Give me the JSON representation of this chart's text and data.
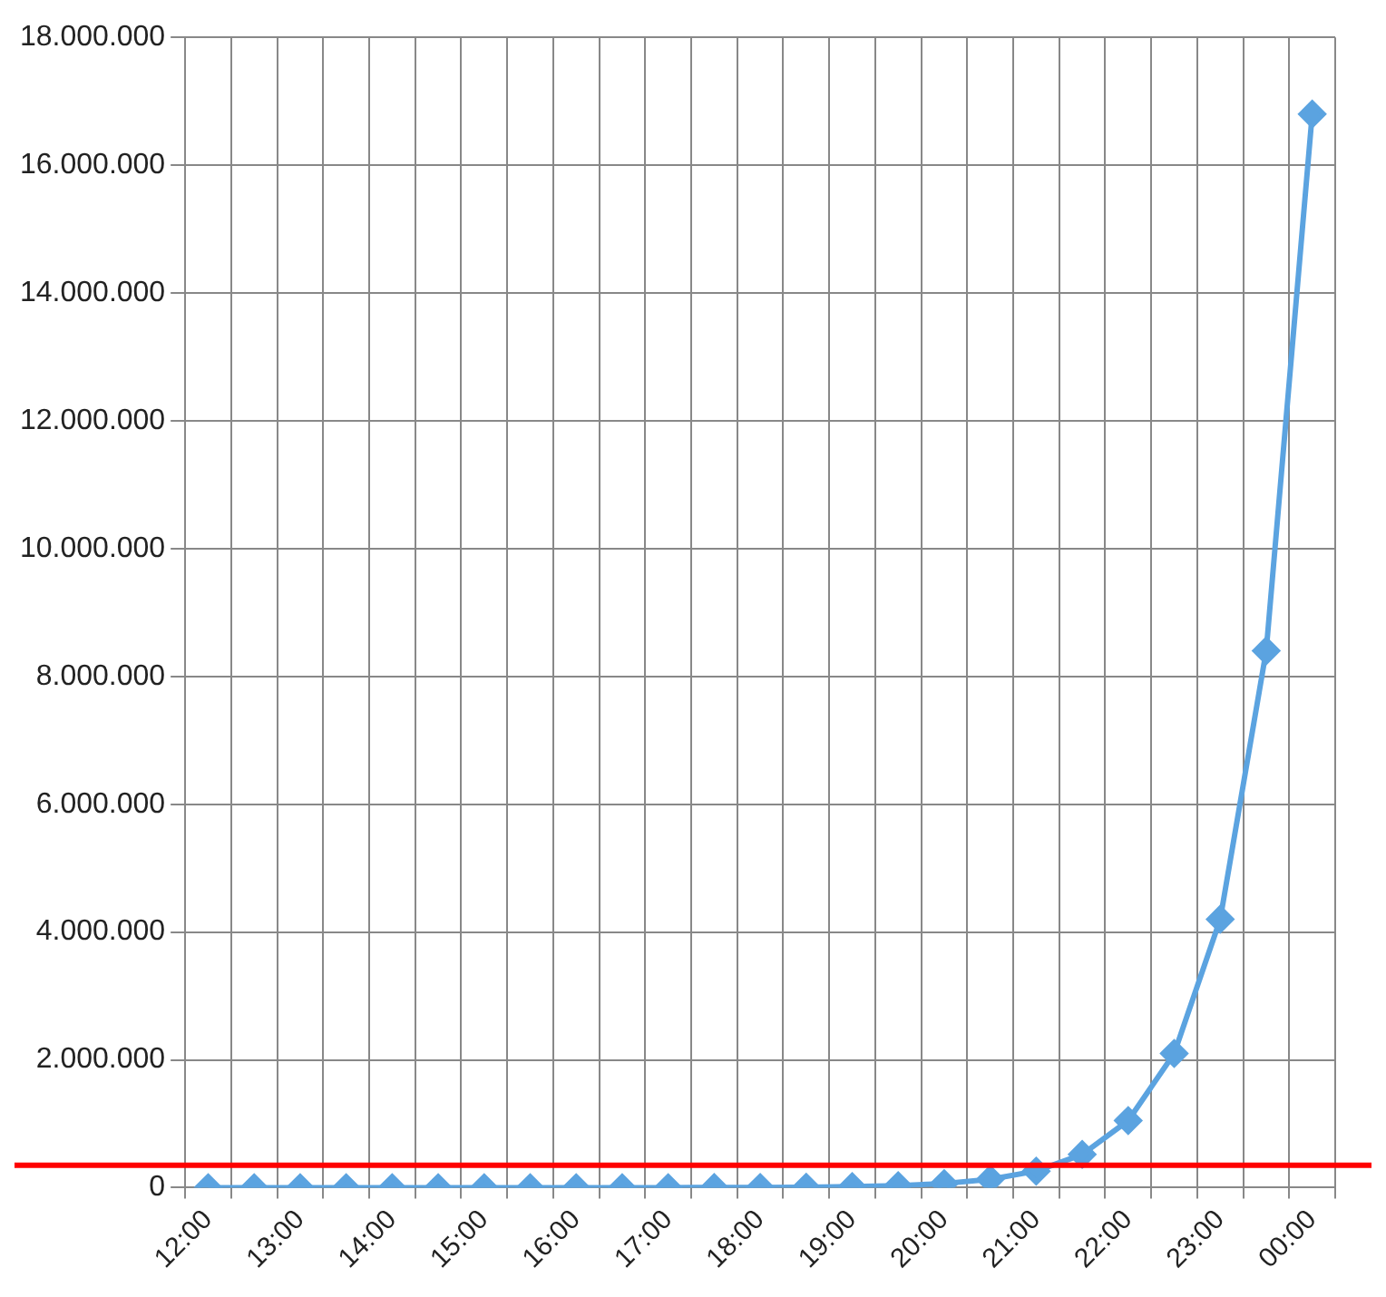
{
  "chart_data": {
    "type": "line",
    "categories": [
      "12:00",
      null,
      "13:00",
      null,
      "14:00",
      null,
      "15:00",
      null,
      "16:00",
      null,
      "17:00",
      null,
      "18:00",
      null,
      "19:00",
      null,
      "20:00",
      null,
      "21:00",
      null,
      "22:00",
      null,
      "23:00",
      null,
      "00:00"
    ],
    "series": [
      {
        "color": "#5ba3e0",
        "values": [
          1,
          2,
          4,
          8,
          16,
          32,
          64,
          128,
          256,
          512,
          1024,
          2048,
          4096,
          8192,
          16384,
          33000,
          65000,
          130000,
          260000,
          520000,
          1050000,
          2100000,
          4200000,
          8400000,
          16800000
        ]
      }
    ],
    "ylim": [
      0,
      18000000
    ],
    "yticks": [
      {
        "value": 0,
        "label": "0"
      },
      {
        "value": 2000000,
        "label": "2.000.000"
      },
      {
        "value": 4000000,
        "label": "4.000.000"
      },
      {
        "value": 6000000,
        "label": "6.000.000"
      },
      {
        "value": 8000000,
        "label": "8.000.000"
      },
      {
        "value": 10000000,
        "label": "10.000.000"
      },
      {
        "value": 12000000,
        "label": "12.000.000"
      },
      {
        "value": 14000000,
        "label": "14.000.000"
      },
      {
        "value": 16000000,
        "label": "16.000.000"
      },
      {
        "value": 18000000,
        "label": "18.000.000"
      }
    ],
    "ref_lines": [
      {
        "axis": "y",
        "value": 350000,
        "color": "#ff0000"
      }
    ],
    "grid": true,
    "legend": false,
    "marker": "diamond",
    "line_style": "solid"
  }
}
